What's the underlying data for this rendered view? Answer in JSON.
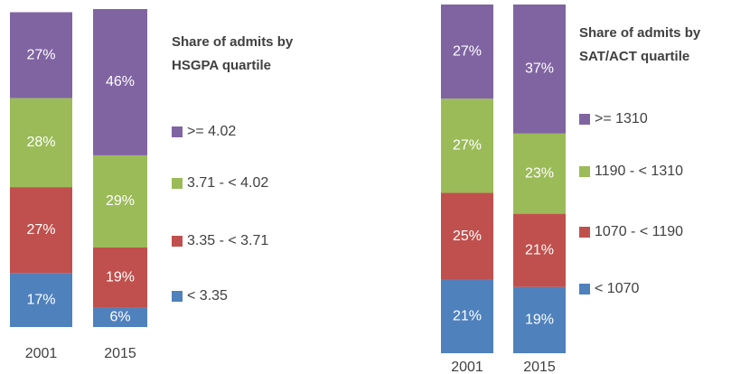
{
  "chart_data": [
    {
      "type": "stacked-bar",
      "title": "Share of admits by HSGPA quartile",
      "categories": [
        "2001",
        "2015"
      ],
      "series": [
        {
          "name": "< 3.35",
          "color": "#4f81bd",
          "values": [
            17,
            6
          ],
          "value_labels": [
            "17%",
            "6%"
          ]
        },
        {
          "name": "3.35 - < 3.71",
          "color": "#c0504d",
          "values": [
            27,
            19
          ],
          "value_labels": [
            "27%",
            "19%"
          ]
        },
        {
          "name": "3.71 - < 4.02",
          "color": "#9bbb59",
          "values": [
            28,
            29
          ],
          "value_labels": [
            "28%",
            "29%"
          ]
        },
        {
          "name": ">= 4.02",
          "color": "#8064a2",
          "values": [
            27,
            46
          ],
          "value_labels": [
            "27%",
            "46%"
          ]
        }
      ]
    },
    {
      "type": "stacked-bar",
      "title": "Share of admits by SAT/ACT quartile",
      "categories": [
        "2001",
        "2015"
      ],
      "series": [
        {
          "name": "< 1070",
          "color": "#4f81bd",
          "values": [
            21,
            19
          ],
          "value_labels": [
            "21%",
            "19%"
          ]
        },
        {
          "name": "1070 - < 1190",
          "color": "#c0504d",
          "values": [
            25,
            21
          ],
          "value_labels": [
            "25%",
            "21%"
          ]
        },
        {
          "name": "1190 - < 1310",
          "color": "#9bbb59",
          "values": [
            27,
            23
          ],
          "value_labels": [
            "27%",
            "23%"
          ]
        },
        {
          "name": ">= 1310",
          "color": "#8064a2",
          "values": [
            27,
            37
          ],
          "value_labels": [
            "27%",
            "37%"
          ]
        }
      ]
    }
  ]
}
